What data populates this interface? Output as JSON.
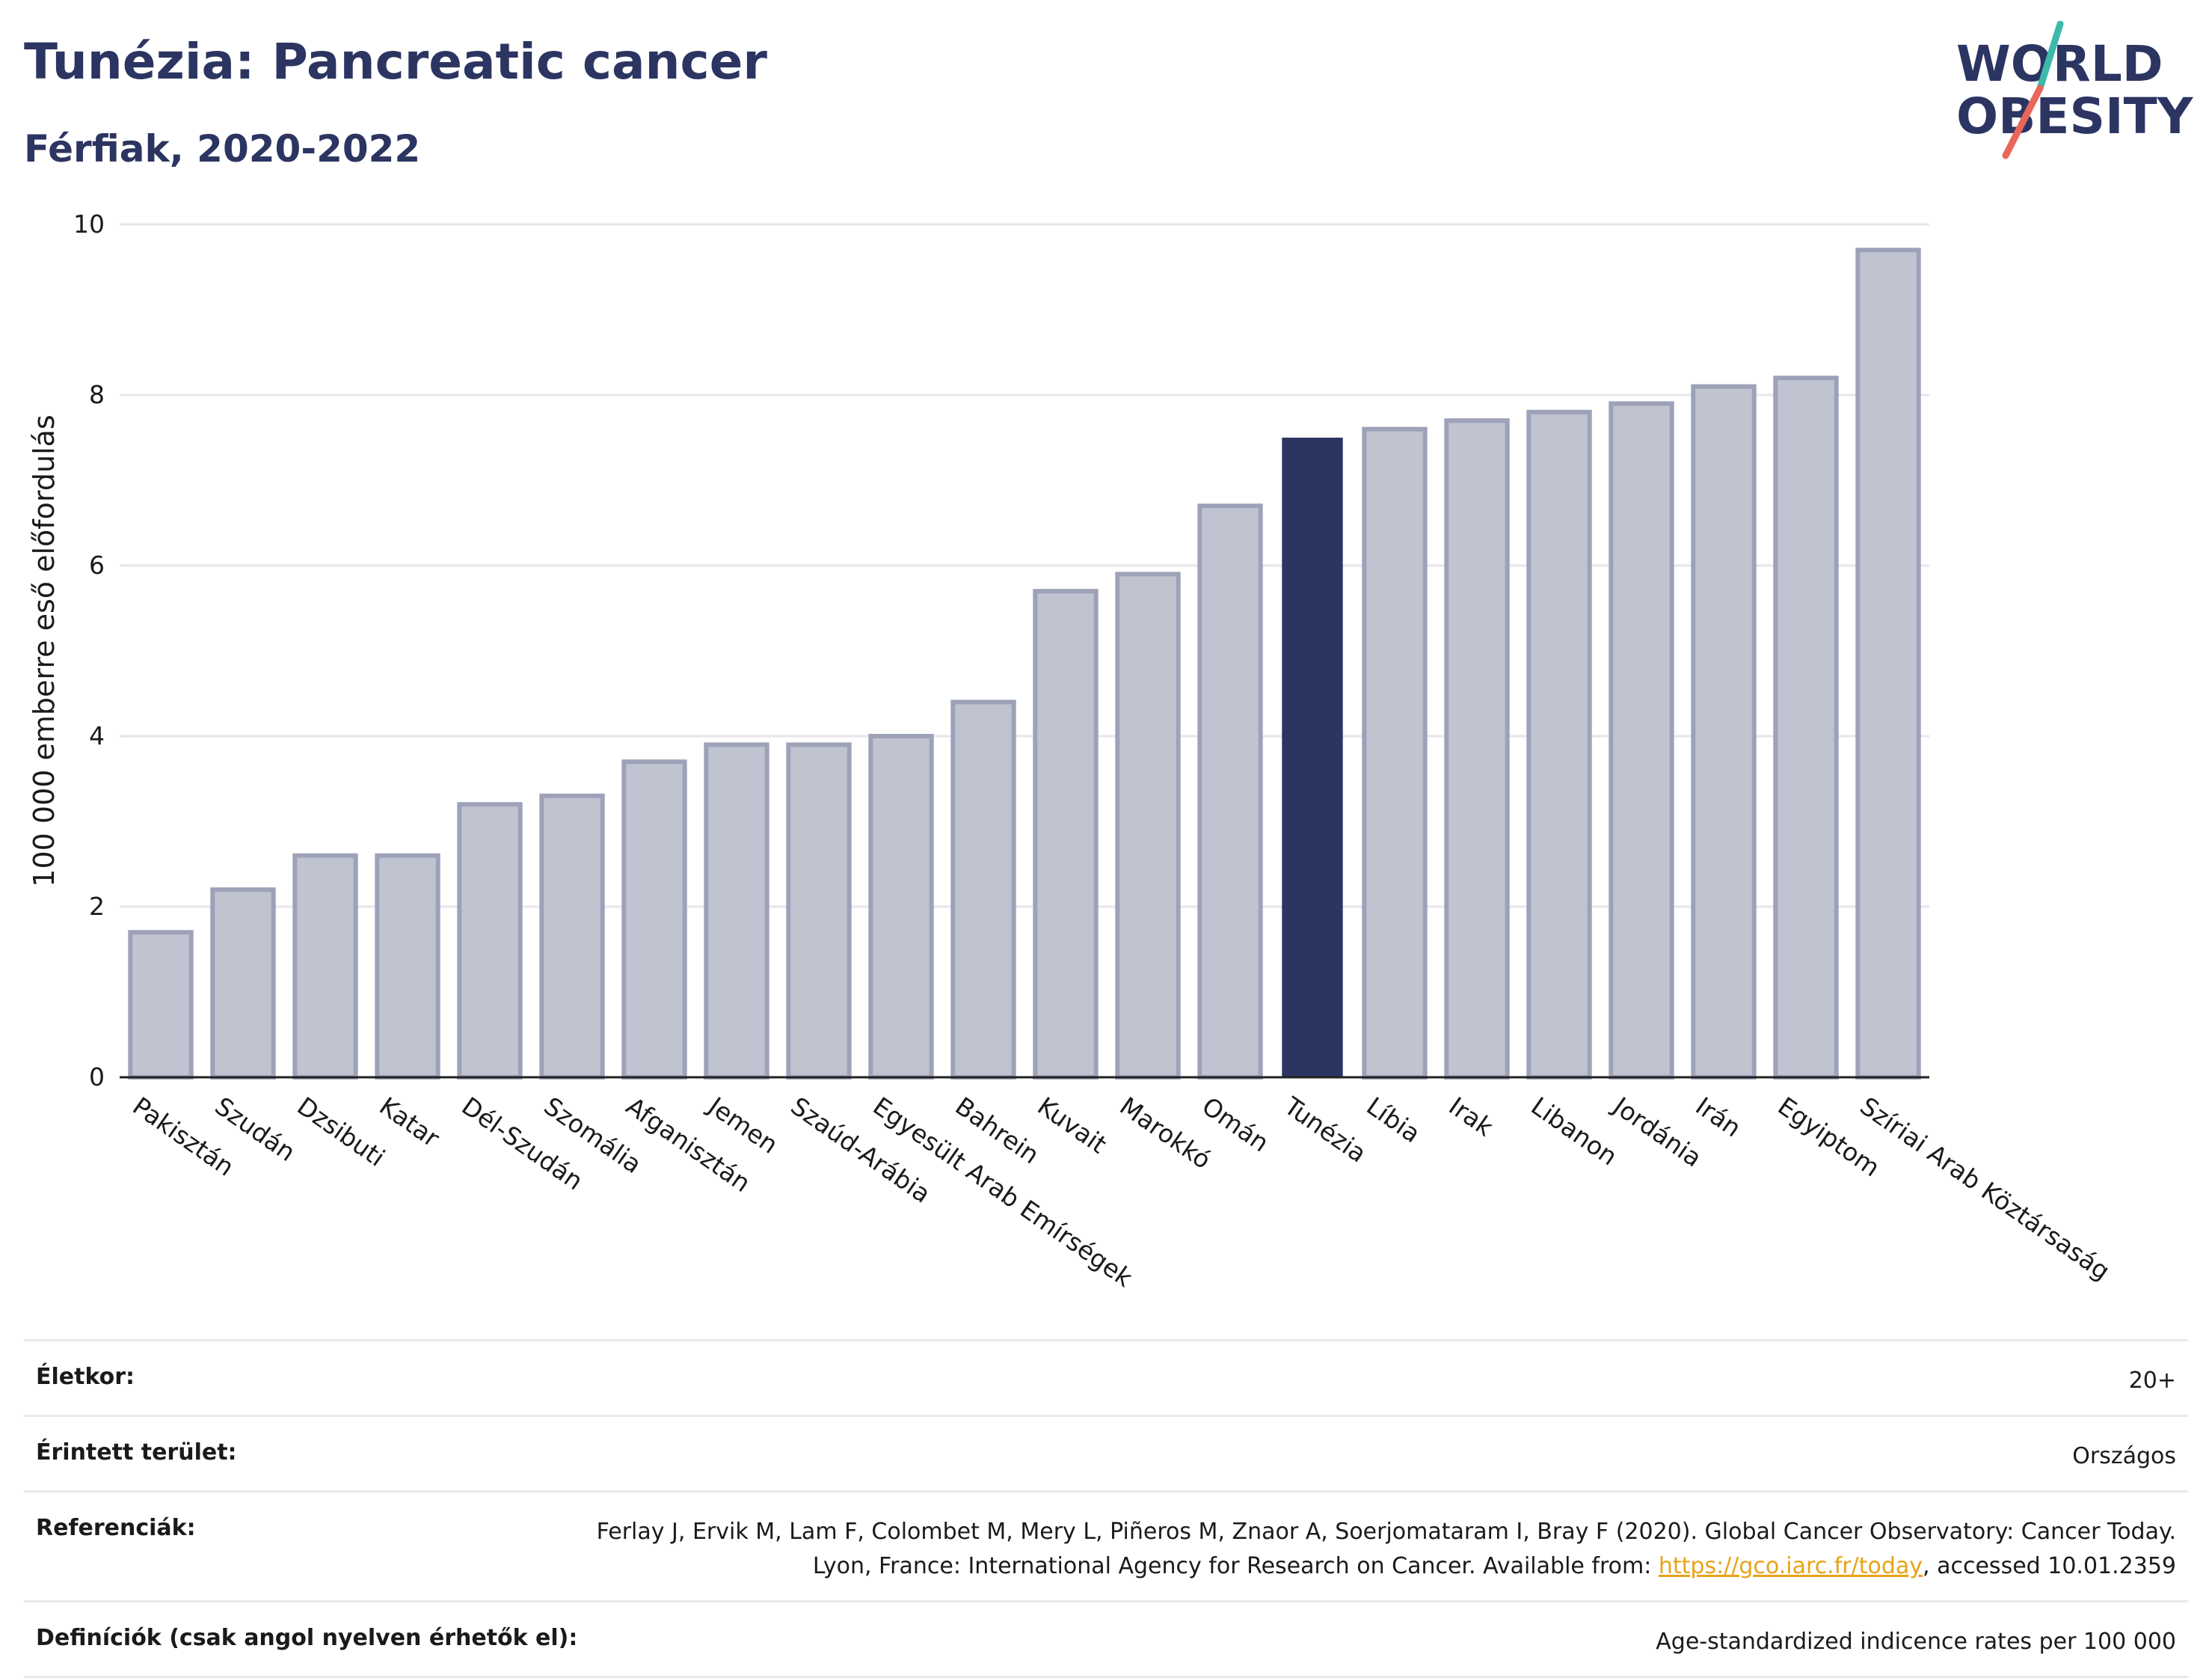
{
  "header": {
    "title": "Tunézia: Pancreatic cancer",
    "subtitle": "Férfiak, 2020-2022"
  },
  "logo": {
    "line1": "WORLD",
    "line2": "OBESITY",
    "icon": "world-obesity-logo"
  },
  "chart_data": {
    "type": "bar",
    "ylabel": "100 000 emberre eső előfordulás",
    "ylim": [
      0,
      10
    ],
    "yticks": [
      0,
      2,
      4,
      6,
      8,
      10
    ],
    "grid": true,
    "categories": [
      "Pakisztán",
      "Szudán",
      "Dzsibuti",
      "Katar",
      "Dél-Szudán",
      "Szomália",
      "Afganisztán",
      "Jemen",
      "Szaúd-Arábia",
      "Egyesült Arab Emírségek",
      "Bahrein",
      "Kuvait",
      "Marokkó",
      "Omán",
      "Tunézia",
      "Líbia",
      "Irak",
      "Libanon",
      "Jordánia",
      "Irán",
      "Egyiptom",
      "Szíriai Arab Köztársaság"
    ],
    "values": [
      1.7,
      2.2,
      2.6,
      2.6,
      3.2,
      3.3,
      3.7,
      3.9,
      3.9,
      4.0,
      4.4,
      5.7,
      5.9,
      6.7,
      7.5,
      7.6,
      7.7,
      7.8,
      7.9,
      8.1,
      8.2,
      9.7
    ],
    "highlight": "Tunézia",
    "colors": {
      "bar": "#c0c3d0",
      "bar_edge": "#9ea2b8",
      "highlight": "#2c3561",
      "grid": "#e6e6ec"
    }
  },
  "info": {
    "age_label": "Életkor:",
    "age_value": "20+",
    "area_label": "Érintett terület:",
    "area_value": "Országos",
    "ref_label": "Referenciák:",
    "ref_text_1": "Ferlay J, Ervik M, Lam F, Colombet M, Mery L, Piñeros M, Znaor A, Soerjomataram I, Bray F (2020). Global Cancer Observatory: Cancer Today. Lyon, France: International Agency for Research on Cancer. Available from: ",
    "ref_link": "https://gco.iarc.fr/today",
    "ref_text_2": ", accessed 10.01.2359",
    "def_label": "Definíciók (csak angol nyelven érhetők el):",
    "def_value": "Age-standardized indicence rates per 100 000"
  }
}
